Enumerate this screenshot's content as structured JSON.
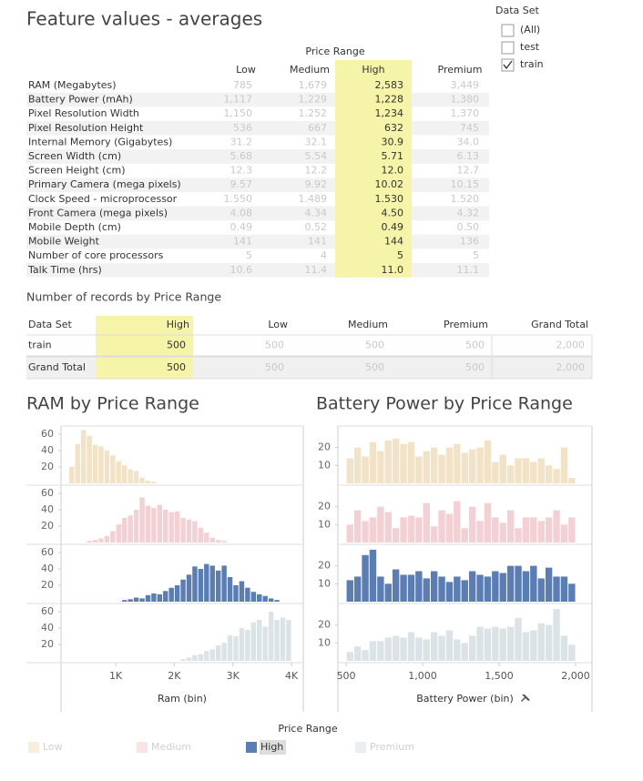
{
  "feature_table": {
    "title": "Feature values - averages",
    "column_group": "Price Range",
    "columns": [
      "Low",
      "Medium",
      "High",
      "Premium"
    ],
    "highlight_column": 2,
    "rows": [
      {
        "label": "RAM (Megabytes)",
        "values": [
          "785",
          "1,679",
          "2,583",
          "3,449"
        ]
      },
      {
        "label": "Battery Power (mAh)",
        "values": [
          "1,117",
          "1,229",
          "1,228",
          "1,380"
        ]
      },
      {
        "label": "Pixel Resolution Width",
        "values": [
          "1,150",
          "1,252",
          "1,234",
          "1,370"
        ]
      },
      {
        "label": "Pixel Resolution Height",
        "values": [
          "536",
          "667",
          "632",
          "745"
        ]
      },
      {
        "label": "Internal Memory (Gigabytes)",
        "values": [
          "31.2",
          "32.1",
          "30.9",
          "34.0"
        ]
      },
      {
        "label": "Screen Width (cm)",
        "values": [
          "5.68",
          "5.54",
          "5.71",
          "6.13"
        ]
      },
      {
        "label": "Screen Height (cm)",
        "values": [
          "12.3",
          "12.2",
          "12.0",
          "12.7"
        ]
      },
      {
        "label": "Primary Camera (mega pixels)",
        "values": [
          "9.57",
          "9.92",
          "10.02",
          "10.15"
        ]
      },
      {
        "label": "Clock Speed - microprocessor",
        "values": [
          "1.550",
          "1.489",
          "1.530",
          "1.520"
        ]
      },
      {
        "label": "Front Camera (mega pixels)",
        "values": [
          "4.08",
          "4.34",
          "4.50",
          "4.32"
        ]
      },
      {
        "label": "Mobile Depth (cm)",
        "values": [
          "0.49",
          "0.52",
          "0.49",
          "0.50"
        ]
      },
      {
        "label": "Mobile Weight",
        "values": [
          "141",
          "141",
          "144",
          "136"
        ]
      },
      {
        "label": "Number of core processors",
        "values": [
          "5",
          "4",
          "5",
          "5"
        ]
      },
      {
        "label": "Talk Time (hrs)",
        "values": [
          "10.6",
          "11.4",
          "11.0",
          "11.1"
        ]
      }
    ]
  },
  "data_set_filter": {
    "title": "Data Set",
    "options": [
      {
        "label": "(All)",
        "checked": false
      },
      {
        "label": "test",
        "checked": false
      },
      {
        "label": "train",
        "checked": true
      }
    ]
  },
  "records_table": {
    "title": "Number of records by Price Range",
    "headers": [
      "Data Set",
      "High",
      "Low",
      "Medium",
      "Premium",
      "Grand Total"
    ],
    "highlight_column": 1,
    "rows": [
      [
        "train",
        "500",
        "500",
        "500",
        "500",
        "2,000"
      ],
      [
        "Grand Total",
        "500",
        "500",
        "500",
        "500",
        "2,000"
      ]
    ]
  },
  "chart_data": [
    {
      "type": "histogram",
      "title": "RAM by Price Range",
      "x_label": "Ram (bin)",
      "bins": [
        200,
        300,
        400,
        500,
        600,
        700,
        800,
        900,
        1000,
        1100,
        1200,
        1300,
        1400,
        1500,
        1600,
        1700,
        1800,
        1900,
        2000,
        2100,
        2200,
        2300,
        2400,
        2500,
        2600,
        2700,
        2800,
        2900,
        3000,
        3100,
        3200,
        3300,
        3400,
        3500,
        3600,
        3700,
        3800,
        3900,
        4000
      ],
      "xlim": [
        67,
        4200
      ],
      "xticks": [
        {
          "value": 1000,
          "label": "1K"
        },
        {
          "value": 2000,
          "label": "2K"
        },
        {
          "value": 3000,
          "label": "3K"
        },
        {
          "value": 4000,
          "label": "4K"
        }
      ],
      "ylim": [
        0,
        70
      ],
      "yticks": [
        20,
        40,
        60
      ],
      "series": [
        {
          "color": "#f2e2c6",
          "values": [
            20,
            48,
            65,
            58,
            47,
            45,
            40,
            34,
            27,
            22,
            17,
            15,
            7,
            3,
            2,
            0,
            0,
            0,
            0,
            0,
            0,
            0,
            0,
            0,
            0,
            0,
            0,
            0,
            0,
            0,
            0,
            0,
            0,
            0,
            0,
            0,
            0,
            0
          ]
        },
        {
          "color": "#f3d0d3",
          "values": [
            0,
            0,
            0,
            2,
            3,
            5,
            8,
            14,
            22,
            30,
            33,
            40,
            55,
            45,
            42,
            46,
            40,
            37,
            38,
            30,
            28,
            26,
            18,
            12,
            6,
            3,
            2,
            0,
            0,
            0,
            0,
            0,
            0,
            0,
            0,
            0,
            0,
            0
          ]
        },
        {
          "color": "#5b7db6",
          "values": [
            0,
            0,
            0,
            0,
            0,
            0,
            0,
            0,
            0,
            2,
            3,
            5,
            4,
            8,
            10,
            9,
            13,
            17,
            20,
            27,
            33,
            43,
            40,
            46,
            44,
            38,
            44,
            30,
            20,
            25,
            17,
            12,
            9,
            7,
            4,
            2,
            0,
            0
          ]
        },
        {
          "color": "#dce3e6",
          "values": [
            0,
            0,
            0,
            0,
            0,
            0,
            0,
            0,
            0,
            0,
            0,
            0,
            0,
            0,
            0,
            0,
            0,
            0,
            0,
            2,
            4,
            7,
            8,
            12,
            14,
            19,
            22,
            31,
            30,
            40,
            38,
            47,
            50,
            42,
            60,
            50,
            53,
            50
          ]
        }
      ]
    },
    {
      "type": "histogram",
      "title": "Battery Power by Price Range",
      "x_label": "Battery Power (bin)",
      "bins": [
        500,
        550,
        600,
        650,
        700,
        750,
        800,
        850,
        900,
        950,
        1000,
        1050,
        1100,
        1150,
        1200,
        1250,
        1300,
        1350,
        1400,
        1450,
        1500,
        1550,
        1600,
        1650,
        1700,
        1750,
        1800,
        1850,
        1900,
        1950,
        2000
      ],
      "xlim": [
        446,
        2107
      ],
      "xticks": [
        500,
        {
          "value": 1000,
          "label": "1,000"
        },
        {
          "value": 1500,
          "label": "1,500"
        },
        {
          "value": 2000,
          "label": "2,000"
        }
      ],
      "ylim": [
        0,
        32
      ],
      "yticks": [
        10,
        20
      ],
      "series": [
        {
          "color": "#f2e2c6",
          "values": [
            14,
            20,
            15,
            23,
            18,
            24,
            25,
            22,
            23,
            15,
            18,
            20,
            16,
            20,
            22,
            17,
            19,
            20,
            24,
            12,
            16,
            10,
            14,
            14,
            12,
            14,
            10,
            8,
            20,
            3
          ]
        },
        {
          "color": "#f3d0d3",
          "values": [
            10,
            18,
            12,
            14,
            20,
            17,
            8,
            14,
            15,
            14,
            22,
            9,
            18,
            16,
            23,
            8,
            20,
            12,
            22,
            14,
            11,
            18,
            8,
            14,
            14,
            12,
            14,
            18,
            10,
            14
          ]
        },
        {
          "color": "#5b7db6",
          "values": [
            12,
            14,
            26,
            29,
            14,
            10,
            18,
            15,
            15,
            17,
            13,
            17,
            14,
            11,
            14,
            12,
            17,
            15,
            14,
            17,
            16,
            20,
            20,
            17,
            20,
            13,
            19,
            14,
            14,
            10
          ]
        },
        {
          "color": "#dce3e6",
          "values": [
            5,
            8,
            6,
            11,
            11,
            13,
            14,
            13,
            16,
            13,
            12,
            16,
            14,
            17,
            12,
            10,
            14,
            19,
            18,
            19,
            18,
            19,
            24,
            16,
            17,
            21,
            20,
            29,
            14,
            9
          ]
        }
      ]
    }
  ],
  "legend": {
    "title": "Price Range",
    "items": [
      {
        "name": "Low",
        "color": "#f2e2c6",
        "selected": false
      },
      {
        "name": "Medium",
        "color": "#f3d0d3",
        "selected": false
      },
      {
        "name": "High",
        "color": "#5b7db6",
        "selected": true
      },
      {
        "name": "Premium",
        "color": "#dce3e6",
        "selected": false
      }
    ]
  }
}
